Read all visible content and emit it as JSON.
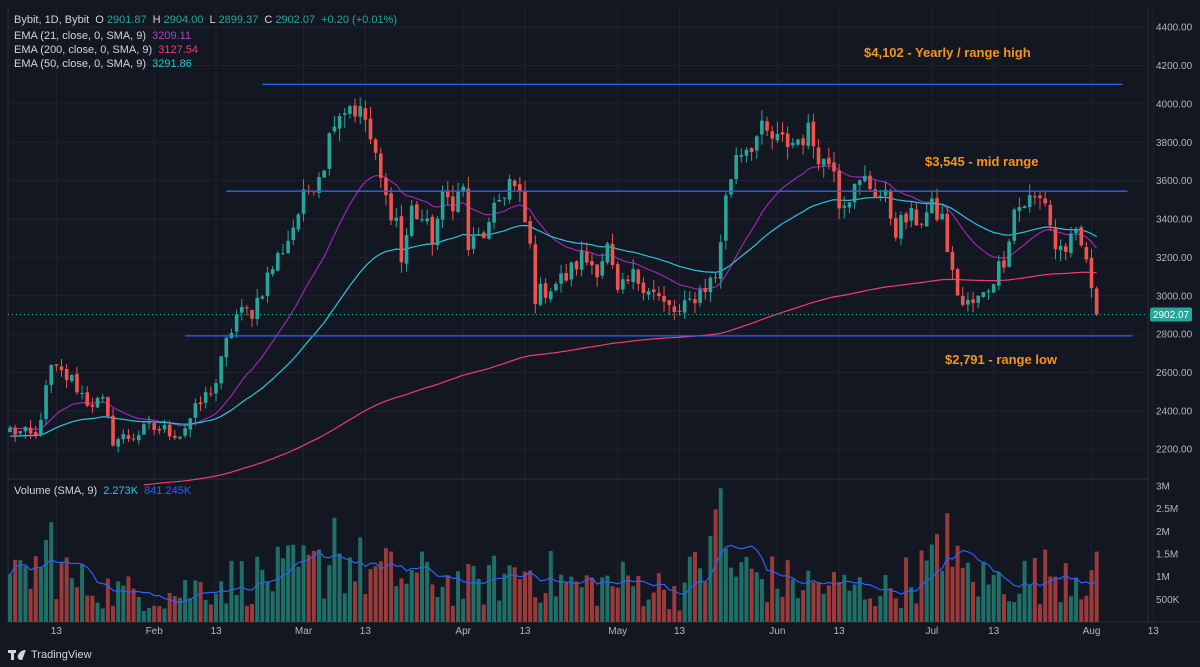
{
  "header": {
    "symbol_line": {
      "text": "Bybit, 1D, Bybit",
      "open_label": "O",
      "open": "2901.87",
      "high_label": "H",
      "high": "2904.00",
      "low_label": "L",
      "low": "2899.37",
      "close_label": "C",
      "close": "2902.07",
      "change": "+0.20 (+0.01%)"
    },
    "indicators": [
      {
        "label": "EMA (21, close, 0, SMA, 9)",
        "value": "3209.11",
        "color": "#9c27b0"
      },
      {
        "label": "EMA (200, close, 0, SMA, 9)",
        "value": "3127.54",
        "color": "#f23b6a"
      },
      {
        "label": "EMA (50, close, 0, SMA, 9)",
        "value": "3291.86",
        "color": "#26c6da"
      }
    ],
    "volume": {
      "label": "Volume (SMA, 9)",
      "value1": "2.273K",
      "value2": "841.245K",
      "color": "#2962ff"
    }
  },
  "annotations": [
    {
      "text": "$4,102 - Yearly / range high",
      "price": 4102
    },
    {
      "text": "$3,545 - mid range",
      "price": 3545
    },
    {
      "text": "$2,791 - range low",
      "price": 2791
    }
  ],
  "branding": {
    "label": "TradingView"
  },
  "colors": {
    "background": "#131722",
    "grid": "#1f2330",
    "up": "#26a69a",
    "down": "#ef5350",
    "hline": "#2962ff",
    "annotation": "#f7931a",
    "text": "#b2b5be"
  },
  "chart_data": {
    "type": "candlestick",
    "price_axis": {
      "min": 2050,
      "max": 4500,
      "ticks": [
        2200,
        2400,
        2600,
        2800,
        3000,
        3200,
        3400,
        3600,
        3800,
        4000,
        4200,
        4400
      ]
    },
    "volume_axis": {
      "max": 3000000,
      "ticks": [
        {
          "v": 500000,
          "label": "500K"
        },
        {
          "v": 1000000,
          "label": "1M"
        },
        {
          "v": 1500000,
          "label": "1.5M"
        },
        {
          "v": 2000000,
          "label": "2M"
        },
        {
          "v": 2500000,
          "label": "2.5M"
        },
        {
          "v": 3000000,
          "label": "3M"
        }
      ]
    },
    "last_price": {
      "label": "2902.07",
      "value": 2902.07
    },
    "x_ticks": [
      {
        "label": "13",
        "i": 9
      },
      {
        "label": "Feb",
        "i": 28
      },
      {
        "label": "13",
        "i": 40
      },
      {
        "label": "Mar",
        "i": 57
      },
      {
        "label": "13",
        "i": 69
      },
      {
        "label": "Apr",
        "i": 88
      },
      {
        "label": "13",
        "i": 100
      },
      {
        "label": "May",
        "i": 118
      },
      {
        "label": "13",
        "i": 130
      },
      {
        "label": "Jun",
        "i": 149
      },
      {
        "label": "13",
        "i": 161
      },
      {
        "label": "Jul",
        "i": 179
      },
      {
        "label": "13",
        "i": 191
      },
      {
        "label": "Aug",
        "i": 210
      },
      {
        "label": "13",
        "i": 222
      }
    ],
    "horizontal_lines": [
      {
        "price": 4102,
        "from_i": 49,
        "to_i": 216
      },
      {
        "price": 3545,
        "from_i": 42,
        "to_i": 217
      },
      {
        "price": 2791,
        "from_i": 34,
        "to_i": 218
      }
    ],
    "anchors": [
      [
        0,
        2300
      ],
      [
        5,
        2260
      ],
      [
        8,
        2620
      ],
      [
        12,
        2560
      ],
      [
        15,
        2450
      ],
      [
        18,
        2440
      ],
      [
        20,
        2250
      ],
      [
        24,
        2270
      ],
      [
        27,
        2310
      ],
      [
        30,
        2300
      ],
      [
        33,
        2280
      ],
      [
        36,
        2400
      ],
      [
        40,
        2550
      ],
      [
        42,
        2750
      ],
      [
        44,
        2900
      ],
      [
        47,
        2920
      ],
      [
        50,
        3100
      ],
      [
        54,
        3300
      ],
      [
        57,
        3500
      ],
      [
        61,
        3700
      ],
      [
        63,
        3950
      ],
      [
        66,
        4000
      ],
      [
        69,
        3920
      ],
      [
        71,
        3700
      ],
      [
        73,
        3500
      ],
      [
        75,
        3400
      ],
      [
        76,
        3180
      ],
      [
        78,
        3450
      ],
      [
        80,
        3400
      ],
      [
        82,
        3300
      ],
      [
        84,
        3500
      ],
      [
        86,
        3500
      ],
      [
        88,
        3550
      ],
      [
        89,
        3250
      ],
      [
        91,
        3300
      ],
      [
        93,
        3350
      ],
      [
        95,
        3500
      ],
      [
        97,
        3600
      ],
      [
        99,
        3500
      ],
      [
        101,
        3250
      ],
      [
        102,
        3000
      ],
      [
        105,
        3050
      ],
      [
        108,
        3100
      ],
      [
        111,
        3200
      ],
      [
        114,
        3150
      ],
      [
        116,
        3250
      ],
      [
        118,
        3000
      ],
      [
        121,
        3100
      ],
      [
        124,
        3050
      ],
      [
        127,
        2950
      ],
      [
        130,
        2900
      ],
      [
        133,
        3000
      ],
      [
        135,
        3050
      ],
      [
        137,
        3100
      ],
      [
        139,
        3500
      ],
      [
        141,
        3750
      ],
      [
        144,
        3800
      ],
      [
        146,
        3850
      ],
      [
        149,
        3800
      ],
      [
        152,
        3800
      ],
      [
        155,
        3850
      ],
      [
        158,
        3700
      ],
      [
        160,
        3700
      ],
      [
        161,
        3500
      ],
      [
        164,
        3550
      ],
      [
        166,
        3600
      ],
      [
        168,
        3550
      ],
      [
        170,
        3500
      ],
      [
        172,
        3350
      ],
      [
        174,
        3400
      ],
      [
        177,
        3400
      ],
      [
        179,
        3450
      ],
      [
        181,
        3400
      ],
      [
        183,
        3100
      ],
      [
        185,
        2950
      ],
      [
        187,
        2960
      ],
      [
        189,
        3000
      ],
      [
        191,
        3100
      ],
      [
        193,
        3200
      ],
      [
        195,
        3450
      ],
      [
        198,
        3500
      ],
      [
        201,
        3500
      ],
      [
        203,
        3250
      ],
      [
        205,
        3250
      ],
      [
        207,
        3300
      ],
      [
        209,
        3200
      ],
      [
        210,
        3000
      ],
      [
        211,
        2902
      ]
    ],
    "volume_anchors": [
      [
        0,
        800000
      ],
      [
        8,
        1500000
      ],
      [
        12,
        900000
      ],
      [
        20,
        700000
      ],
      [
        30,
        600000
      ],
      [
        40,
        900000
      ],
      [
        50,
        1000000
      ],
      [
        60,
        1200000
      ],
      [
        65,
        1400000
      ],
      [
        70,
        1100000
      ],
      [
        80,
        1000000
      ],
      [
        90,
        800000
      ],
      [
        100,
        1200000
      ],
      [
        110,
        800000
      ],
      [
        120,
        900000
      ],
      [
        130,
        700000
      ],
      [
        136,
        1500000
      ],
      [
        138,
        2000000
      ],
      [
        140,
        1200000
      ],
      [
        150,
        900000
      ],
      [
        160,
        800000
      ],
      [
        170,
        700000
      ],
      [
        180,
        1300000
      ],
      [
        190,
        900000
      ],
      [
        200,
        1000000
      ],
      [
        205,
        1300000
      ],
      [
        211,
        1000000
      ]
    ],
    "ema": [
      {
        "name": "EMA 21",
        "color": "#9c27b0",
        "period": 21
      },
      {
        "name": "EMA 50",
        "color": "#26c6da",
        "period": 50
      },
      {
        "name": "EMA 200",
        "color": "#f23b6a",
        "period": 200
      }
    ]
  }
}
